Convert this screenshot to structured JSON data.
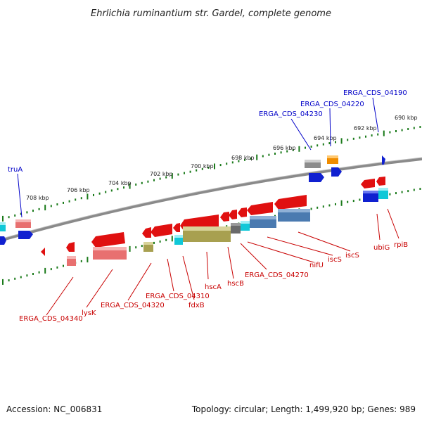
{
  "title": "Ehrlichia ruminantium str. Gardel, complete genome",
  "footer": {
    "accession": "Accession: NC_006831",
    "summary": "Topology: circular; Length: 1,499,920 bp; Genes: 989"
  },
  "colors": {
    "forward_label": "#0000c8",
    "reverse_label": "#c80000",
    "backbone": "#8a8a8a",
    "tick": "#1a7a1a",
    "red": "#e01010",
    "blue": "#1020d0",
    "cyan": "#10c8d8",
    "pink": "#e87070",
    "olive": "#a8a050",
    "steel": "#4a7ab0",
    "gray": "#8c8c8c",
    "orange": "#f08c00"
  },
  "kbp_ticks": [
    "708 kbp",
    "706 kbp",
    "704 kbp",
    "702 kbp",
    "700 kbp",
    "698 kbp",
    "696 kbp",
    "694 kbp",
    "692 kbp",
    "690 kbp"
  ],
  "forward_labels": [
    "truA",
    "ERGA_CDS_04230",
    "ERGA_CDS_04220",
    "ERGA_CDS_04190"
  ],
  "reverse_labels": [
    "ERGA_CDS_04340",
    "lysK",
    "ERGA_CDS_04320",
    "ERGA_CDS_04310",
    "fdxB",
    "hscA",
    "hscB",
    "ERGA_CDS_04270",
    "nifU",
    "iscS",
    "iscS",
    "ubiG",
    "rpiB"
  ]
}
